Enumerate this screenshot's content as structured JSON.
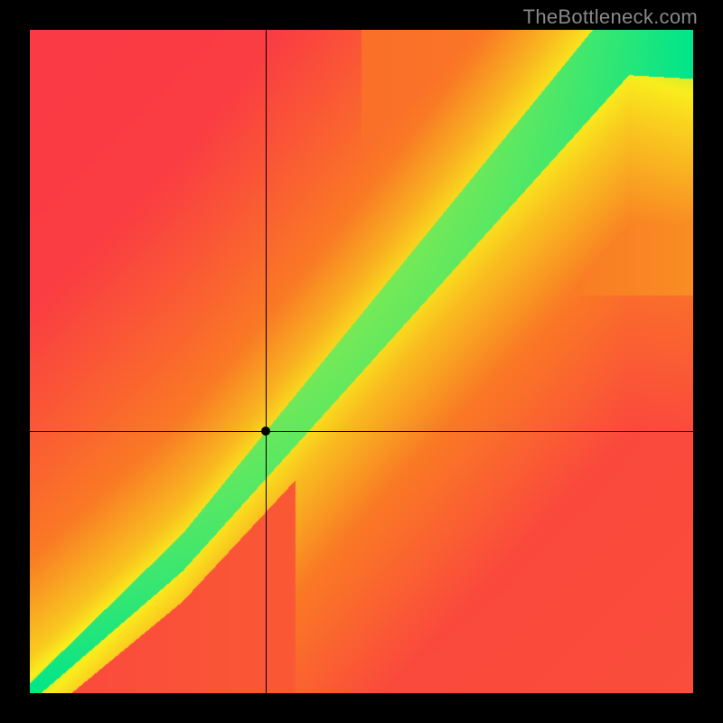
{
  "watermark": {
    "text": "TheBottleneck.com"
  },
  "frame": {
    "outer_size": 800,
    "border": 33,
    "border_color": "#000000",
    "plot_size": 734,
    "background_color": "#ffffff"
  },
  "gradient": {
    "type": "bottleneck-heatmap",
    "grid": 180,
    "colors": {
      "red": "#fb3a45",
      "orange": "#fa7a25",
      "yellow": "#f9ee1d",
      "green": "#00e58b"
    },
    "ridge": {
      "break_u": 0.23,
      "slope_low": 0.92,
      "intercept_high": -0.13,
      "slope_high": 1.17
    },
    "bands": {
      "green_halfwidth": 0.042,
      "yellow_halfwidth": 0.095
    },
    "corner_bias": {
      "tl_pull": 0.7,
      "br_push": 0.25
    }
  },
  "crosshair": {
    "u": 0.355,
    "v": 0.605,
    "line_color": "#000000",
    "line_width": 1,
    "dot_radius": 5,
    "dot_color": "#000000"
  }
}
